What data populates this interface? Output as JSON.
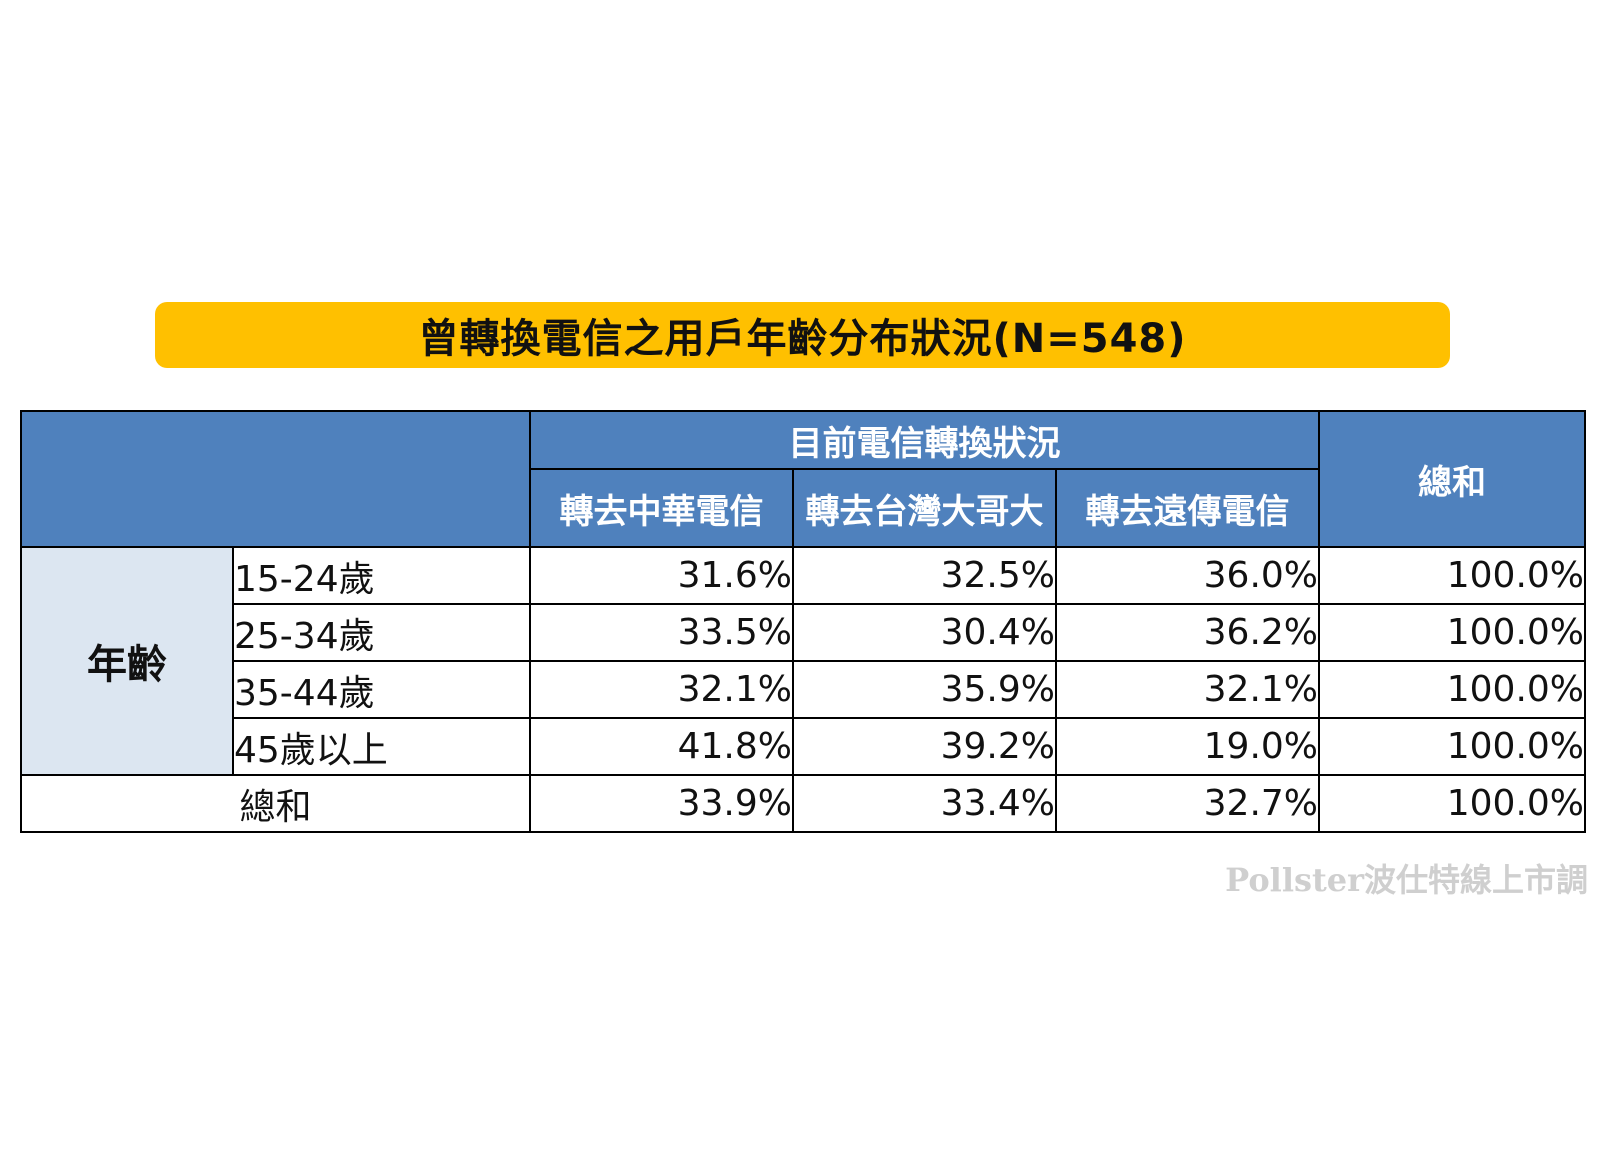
{
  "chart_data": {
    "type": "table",
    "title": "曾轉換電信之用戶年齡分布狀況(N=548)",
    "group_header": "目前電信轉換狀況",
    "row_group_label": "年齡",
    "columns": [
      "轉去中華電信",
      "轉去台灣大哥大",
      "轉去遠傳電信",
      "總和"
    ],
    "rows": [
      {
        "label": "15-24歲",
        "values": [
          "31.6%",
          "32.5%",
          "36.0%",
          "100.0%"
        ]
      },
      {
        "label": "25-34歲",
        "values": [
          "33.5%",
          "30.4%",
          "36.2%",
          "100.0%"
        ]
      },
      {
        "label": "35-44歲",
        "values": [
          "32.1%",
          "35.9%",
          "32.1%",
          "100.0%"
        ]
      },
      {
        "label": "45歲以上",
        "values": [
          "41.8%",
          "39.2%",
          "19.0%",
          "100.0%"
        ]
      }
    ],
    "total_row": {
      "label": "總和",
      "values": [
        "33.9%",
        "33.4%",
        "32.7%",
        "100.0%"
      ]
    }
  },
  "watermark": "Pollster波仕特線上市調",
  "colors": {
    "title_bg": "#FFC000",
    "header_bg": "#4F81BD",
    "age_bg": "#DCE6F1"
  }
}
